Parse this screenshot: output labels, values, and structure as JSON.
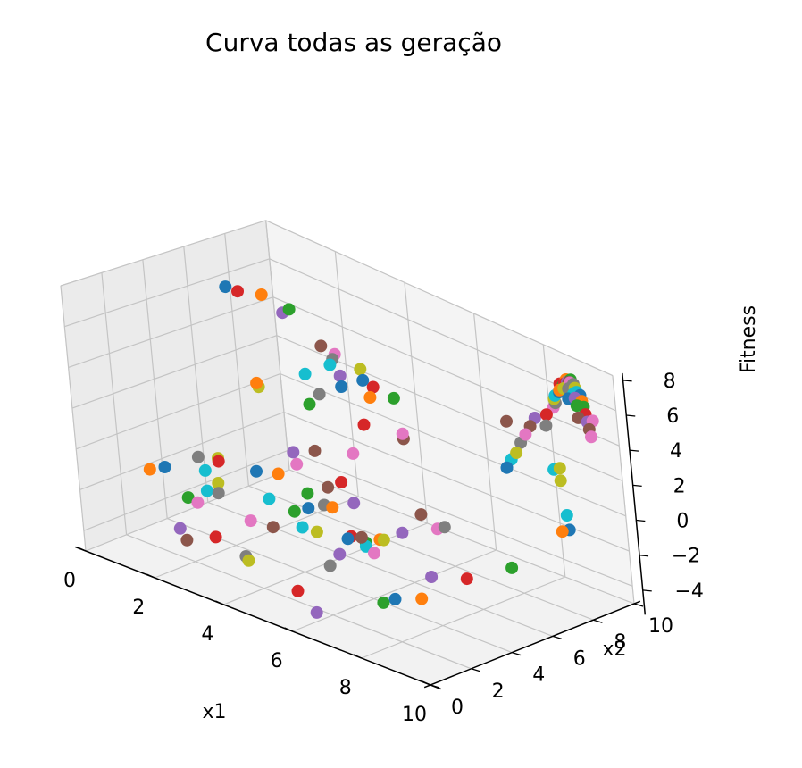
{
  "chart_data": {
    "type": "scatter",
    "projection": "3d",
    "title": "Curva todas as geração",
    "xlabel": "x1",
    "ylabel": "x2",
    "zlabel": "Fitness",
    "xlim": [
      0,
      10
    ],
    "ylim": [
      0,
      10
    ],
    "zlim": [
      -5,
      8
    ],
    "xticks": [
      "0",
      "2",
      "4",
      "6",
      "8",
      "10"
    ],
    "yticks": [
      "0",
      "2",
      "4",
      "6",
      "8",
      "10"
    ],
    "zticks": [
      "−4",
      "−2",
      "0",
      "2",
      "4",
      "6",
      "8"
    ],
    "grid": true,
    "palette": [
      "#1f77b4",
      "#ff7f0e",
      "#2ca02c",
      "#d62728",
      "#9467bd",
      "#8c564b",
      "#e377c2",
      "#7f7f7f",
      "#bcbd22",
      "#17becf"
    ],
    "points": [
      [
        0.5,
        7.0,
        6.0
      ],
      [
        0.8,
        8.2,
        5.4
      ],
      [
        1.4,
        8.5,
        5.0
      ],
      [
        0.6,
        7.4,
        5.7
      ],
      [
        1.0,
        8.8,
        4.4
      ],
      [
        2.0,
        8.9,
        3.4
      ],
      [
        2.2,
        9.2,
        3.0
      ],
      [
        2.5,
        8.6,
        3.2
      ],
      [
        2.8,
        9.4,
        2.6
      ],
      [
        2.6,
        8.3,
        3.1
      ],
      [
        3.1,
        9.0,
        2.4
      ],
      [
        3.4,
        8.8,
        1.8
      ],
      [
        3.6,
        9.6,
        1.6
      ],
      [
        3.2,
        9.3,
        2.0
      ],
      [
        3.0,
        8.1,
        2.9
      ],
      [
        4.1,
        9.1,
        0.0
      ],
      [
        4.4,
        8.6,
        0.7
      ],
      [
        2.9,
        7.2,
        2.2
      ],
      [
        1.6,
        6.4,
        1.9
      ],
      [
        2.4,
        7.4,
        2.8
      ],
      [
        3.2,
        7.8,
        2.6
      ],
      [
        1.8,
        6.0,
        2.4
      ],
      [
        2.7,
        7.0,
        1.6
      ],
      [
        3.9,
        7.6,
        1.2
      ],
      [
        2.2,
        6.8,
        -1.2
      ],
      [
        2.6,
        7.2,
        -1.0
      ],
      [
        3.3,
        7.9,
        -0.9
      ],
      [
        0.6,
        4.8,
        -1.8
      ],
      [
        1.0,
        5.1,
        -1.7
      ],
      [
        0.9,
        4.6,
        -2.2
      ],
      [
        1.8,
        5.6,
        -2.0
      ],
      [
        2.2,
        6.0,
        -2.0
      ],
      [
        2.9,
        6.2,
        -2.6
      ],
      [
        4.2,
        5.8,
        -0.9
      ],
      [
        5.7,
        6.1,
        -2.6
      ],
      [
        6.8,
        9.8,
        2.8
      ],
      [
        8.0,
        10.2,
        4.4
      ],
      [
        8.2,
        10.0,
        4.9
      ],
      [
        8.3,
        9.8,
        5.3
      ],
      [
        8.4,
        9.7,
        5.6
      ],
      [
        8.6,
        9.6,
        6.0
      ],
      [
        8.7,
        9.6,
        6.3
      ],
      [
        8.8,
        9.5,
        6.6
      ],
      [
        8.9,
        9.4,
        6.8
      ],
      [
        9.0,
        9.4,
        7.0
      ],
      [
        9.1,
        9.3,
        7.1
      ],
      [
        9.2,
        9.2,
        7.2
      ],
      [
        9.3,
        9.2,
        7.2
      ],
      [
        9.4,
        9.1,
        7.1
      ],
      [
        9.5,
        9.0,
        7.0
      ],
      [
        9.6,
        9.0,
        6.9
      ],
      [
        9.7,
        8.9,
        6.7
      ],
      [
        9.8,
        8.8,
        6.5
      ],
      [
        9.9,
        8.7,
        6.2
      ],
      [
        10.0,
        8.6,
        5.9
      ],
      [
        10.1,
        8.5,
        5.6
      ],
      [
        10.2,
        8.4,
        5.3
      ],
      [
        9.2,
        9.1,
        6.9
      ],
      [
        9.0,
        9.2,
        6.7
      ],
      [
        9.4,
        9.0,
        6.8
      ],
      [
        9.3,
        8.9,
        6.5
      ],
      [
        8.8,
        9.3,
        6.4
      ],
      [
        9.6,
        8.8,
        6.4
      ],
      [
        7.9,
        10.0,
        4.0
      ],
      [
        7.6,
        9.9,
        3.6
      ],
      [
        7.5,
        9.8,
        3.1
      ],
      [
        7.4,
        9.7,
        2.6
      ],
      [
        7.3,
        9.6,
        2.1
      ],
      [
        7.2,
        9.5,
        1.5
      ],
      [
        7.1,
        9.4,
        1.1
      ],
      [
        7.0,
        9.3,
        0.6
      ],
      [
        8.9,
        9.5,
        7.0
      ],
      [
        9.1,
        9.4,
        7.2
      ],
      [
        8.7,
        9.5,
        6.6
      ],
      [
        9.5,
        8.9,
        6.7
      ],
      [
        9.8,
        8.5,
        6.0
      ],
      [
        10.1,
        8.7,
        6.0
      ],
      [
        9.0,
        8.2,
        5.0
      ],
      [
        9.8,
        7.4,
        3.6
      ],
      [
        10.2,
        6.9,
        1.5
      ],
      [
        10.3,
        6.8,
        0.8
      ],
      [
        10.4,
        6.3,
        1.0
      ],
      [
        9.6,
        5.0,
        -1.1
      ],
      [
        8.6,
        4.4,
        -2.2
      ],
      [
        7.6,
        4.3,
        -2.8
      ],
      [
        6.0,
        6.6,
        -1.6
      ],
      [
        6.2,
        7.0,
        -2.4
      ],
      [
        6.8,
        6.4,
        -1.6
      ],
      [
        5.7,
        5.2,
        -2.6
      ],
      [
        5.4,
        4.8,
        -3.0
      ],
      [
        5.0,
        4.6,
        -2.8
      ],
      [
        5.2,
        5.8,
        -3.2
      ],
      [
        4.9,
        5.6,
        -3.5
      ],
      [
        4.6,
        5.4,
        -3.3
      ],
      [
        5.6,
        3.2,
        -2.6
      ],
      [
        5.8,
        4.0,
        -1.9
      ],
      [
        6.2,
        3.9,
        -2.4
      ],
      [
        5.6,
        2.7,
        -3.0
      ],
      [
        4.6,
        3.8,
        -2.4
      ],
      [
        4.3,
        3.6,
        -2.3
      ],
      [
        7.4,
        2.8,
        -3.5
      ],
      [
        8.2,
        2.8,
        -2.9
      ],
      [
        7.8,
        1.6,
        -2.9
      ],
      [
        5.7,
        0.9,
        -3.5
      ],
      [
        6.4,
        0.6,
        -4.0
      ],
      [
        3.8,
        3.0,
        -2.4
      ],
      [
        3.4,
        2.6,
        -2.2
      ],
      [
        2.0,
        3.4,
        -2.1
      ],
      [
        1.7,
        3.9,
        -2.0
      ],
      [
        1.6,
        3.5,
        -2.3
      ],
      [
        0.2,
        3.8,
        -2.2
      ],
      [
        0.0,
        3.4,
        -2.3
      ],
      [
        1.2,
        3.2,
        -2.8
      ],
      [
        2.3,
        2.6,
        -3.8
      ],
      [
        1.7,
        1.9,
        -3.5
      ],
      [
        2.0,
        1.7,
        -3.8
      ],
      [
        1.6,
        3.0,
        -2.7
      ],
      [
        3.6,
        1.9,
        -3.6
      ],
      [
        3.8,
        1.7,
        -3.6
      ],
      [
        3.0,
        4.2,
        -2.0
      ],
      [
        3.9,
        4.6,
        -2.0
      ],
      [
        4.5,
        4.8,
        -1.6
      ],
      [
        3.6,
        4.4,
        -2.3
      ],
      [
        1.2,
        4.8,
        -1.6
      ],
      [
        4.2,
        6.3,
        -2.2
      ],
      [
        3.4,
        6.4,
        -2.0
      ],
      [
        2.4,
        6.6,
        -1.6
      ],
      [
        4.0,
        5.2,
        -2.0
      ],
      [
        8.9,
        8.8,
        1.6
      ],
      [
        8.6,
        9.0,
        1.9
      ]
    ]
  }
}
